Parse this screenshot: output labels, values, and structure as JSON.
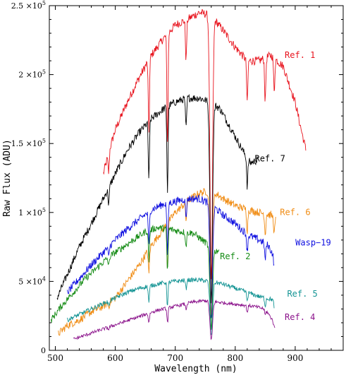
{
  "chart_data": {
    "type": "line",
    "xlabel": "Wavelength (nm)",
    "ylabel": "Raw Flux (ADU)",
    "xlim": [
      490,
      980
    ],
    "ylim": [
      0,
      250000
    ],
    "grid": false,
    "x_ticks": [
      {
        "value": 500,
        "label": "500"
      },
      {
        "value": 600,
        "label": "600"
      },
      {
        "value": 700,
        "label": "700"
      },
      {
        "value": 800,
        "label": "800"
      },
      {
        "value": 900,
        "label": "900"
      }
    ],
    "y_ticks": [
      {
        "value": 0,
        "label": "0",
        "mant": "",
        "exp": ""
      },
      {
        "value": 50000,
        "label": "",
        "mant": "5 ×10",
        "exp": "4"
      },
      {
        "value": 100000,
        "label": "",
        "mant": "1 ×10",
        "exp": "5"
      },
      {
        "value": 150000,
        "label": "",
        "mant": "1.5 ×10",
        "exp": "5"
      },
      {
        "value": 200000,
        "label": "",
        "mant": "2 ×10",
        "exp": "5"
      },
      {
        "value": 250000,
        "label": "",
        "mant": "2.5 ×10",
        "exp": "5"
      }
    ],
    "absorption_lines": [
      {
        "x": 589,
        "depth": 0.1
      },
      {
        "x": 656,
        "depth": 0.25
      },
      {
        "x": 687,
        "depth": 0.35
      },
      {
        "x": 718,
        "depth": 0.12
      },
      {
        "x": 760,
        "depth": 0.8
      },
      {
        "x": 820,
        "depth": 0.15
      },
      {
        "x": 850,
        "depth": 0.15
      },
      {
        "x": 865,
        "depth": 0.12
      }
    ],
    "series": [
      {
        "name": "Ref. 1",
        "color": "#e8141e",
        "noise": 3000,
        "label_at": [
          908,
          212000
        ],
        "points": [
          [
            580,
            128000
          ],
          [
            590,
            145000
          ],
          [
            600,
            160000
          ],
          [
            620,
            180000
          ],
          [
            640,
            198000
          ],
          [
            660,
            214000
          ],
          [
            680,
            226000
          ],
          [
            700,
            236000
          ],
          [
            720,
            240000
          ],
          [
            740,
            245000
          ],
          [
            760,
            243000
          ],
          [
            780,
            232000
          ],
          [
            800,
            220000
          ],
          [
            820,
            210000
          ],
          [
            840,
            210000
          ],
          [
            860,
            214000
          ],
          [
            880,
            206000
          ],
          [
            900,
            180000
          ],
          [
            910,
            160000
          ],
          [
            918,
            145000
          ]
        ]
      },
      {
        "name": "Ref. 7",
        "color": "#000000",
        "noise": 2800,
        "label_at": [
          858,
          137000
        ],
        "points": [
          [
            503,
            38000
          ],
          [
            520,
            55000
          ],
          [
            540,
            75000
          ],
          [
            560,
            92000
          ],
          [
            580,
            110000
          ],
          [
            600,
            128000
          ],
          [
            620,
            145000
          ],
          [
            640,
            158000
          ],
          [
            660,
            168000
          ],
          [
            680,
            175000
          ],
          [
            700,
            180000
          ],
          [
            720,
            183000
          ],
          [
            740,
            183000
          ],
          [
            760,
            180000
          ],
          [
            775,
            175000
          ],
          [
            790,
            163000
          ],
          [
            800,
            155000
          ],
          [
            815,
            143000
          ],
          [
            825,
            136000
          ],
          [
            838,
            138000
          ]
        ]
      },
      {
        "name": "Ref. 6",
        "color": "#f08c14",
        "noise": 2800,
        "label_at": [
          900,
          98000
        ],
        "points": [
          [
            505,
            12000
          ],
          [
            520,
            18000
          ],
          [
            540,
            22000
          ],
          [
            560,
            28000
          ],
          [
            580,
            32000
          ],
          [
            600,
            38000
          ],
          [
            620,
            50000
          ],
          [
            640,
            62000
          ],
          [
            660,
            76000
          ],
          [
            680,
            88000
          ],
          [
            700,
            100000
          ],
          [
            720,
            108000
          ],
          [
            740,
            114000
          ],
          [
            760,
            116000
          ],
          [
            780,
            110000
          ],
          [
            800,
            105000
          ],
          [
            820,
            102000
          ],
          [
            840,
            100000
          ],
          [
            860,
            98000
          ],
          [
            868,
            95000
          ]
        ]
      },
      {
        "name": "Wasp−19",
        "color": "#1010e0",
        "noise": 2800,
        "label_at": [
          930,
          76000
        ],
        "points": [
          [
            520,
            42000
          ],
          [
            540,
            52000
          ],
          [
            560,
            62000
          ],
          [
            580,
            71000
          ],
          [
            600,
            80000
          ],
          [
            620,
            88000
          ],
          [
            640,
            95000
          ],
          [
            660,
            102000
          ],
          [
            680,
            106000
          ],
          [
            700,
            108000
          ],
          [
            720,
            110000
          ],
          [
            740,
            110000
          ],
          [
            760,
            106000
          ],
          [
            780,
            98000
          ],
          [
            800,
            92000
          ],
          [
            820,
            84000
          ],
          [
            840,
            80000
          ],
          [
            855,
            76000
          ],
          [
            865,
            68000
          ]
        ]
      },
      {
        "name": "Ref. 2",
        "color": "#168c16",
        "noise": 2500,
        "label_at": [
          800,
          66000
        ],
        "points": [
          [
            493,
            22000
          ],
          [
            510,
            32000
          ],
          [
            530,
            42000
          ],
          [
            550,
            52000
          ],
          [
            570,
            60000
          ],
          [
            590,
            68000
          ],
          [
            610,
            74000
          ],
          [
            630,
            80000
          ],
          [
            650,
            86000
          ],
          [
            670,
            89000
          ],
          [
            690,
            88000
          ],
          [
            710,
            86000
          ],
          [
            730,
            85000
          ],
          [
            745,
            80000
          ],
          [
            760,
            75000
          ],
          [
            768,
            72000
          ],
          [
            773,
            73000
          ]
        ]
      },
      {
        "name": "Ref. 5",
        "color": "#149494",
        "noise": 1600,
        "label_at": [
          912,
          39000
        ],
        "points": [
          [
            520,
            22000
          ],
          [
            540,
            26000
          ],
          [
            560,
            30000
          ],
          [
            580,
            34000
          ],
          [
            600,
            38000
          ],
          [
            620,
            42000
          ],
          [
            640,
            45000
          ],
          [
            660,
            47000
          ],
          [
            680,
            49000
          ],
          [
            700,
            50000
          ],
          [
            720,
            51000
          ],
          [
            740,
            51000
          ],
          [
            760,
            50000
          ],
          [
            780,
            48000
          ],
          [
            800,
            45000
          ],
          [
            820,
            42000
          ],
          [
            840,
            39000
          ],
          [
            860,
            37000
          ],
          [
            865,
            36000
          ]
        ]
      },
      {
        "name": "Ref. 4",
        "color": "#8c148c",
        "noise": 1200,
        "label_at": [
          908,
          22000
        ],
        "points": [
          [
            530,
            8000
          ],
          [
            550,
            11000
          ],
          [
            570,
            14000
          ],
          [
            590,
            17000
          ],
          [
            610,
            20000
          ],
          [
            630,
            23000
          ],
          [
            650,
            26000
          ],
          [
            670,
            29000
          ],
          [
            690,
            31000
          ],
          [
            710,
            33000
          ],
          [
            730,
            35000
          ],
          [
            750,
            36000
          ],
          [
            770,
            35000
          ],
          [
            790,
            34000
          ],
          [
            810,
            33000
          ],
          [
            830,
            32000
          ],
          [
            850,
            30000
          ],
          [
            862,
            22000
          ],
          [
            866,
            18000
          ]
        ]
      }
    ]
  }
}
